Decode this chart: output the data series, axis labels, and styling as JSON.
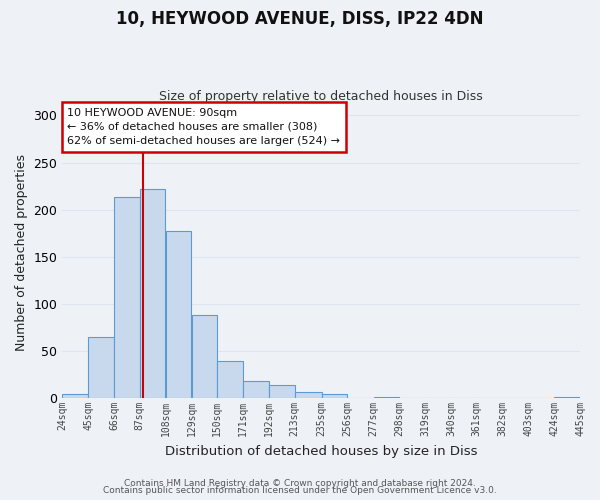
{
  "title": "10, HEYWOOD AVENUE, DISS, IP22 4DN",
  "subtitle": "Size of property relative to detached houses in Diss",
  "xlabel": "Distribution of detached houses by size in Diss",
  "ylabel": "Number of detached properties",
  "bar_edges": [
    24,
    45,
    66,
    87,
    108,
    129,
    150,
    171,
    192,
    213,
    235,
    256,
    277,
    298,
    319,
    340,
    361,
    382,
    403,
    424,
    445
  ],
  "bar_heights": [
    4,
    65,
    214,
    222,
    177,
    88,
    39,
    18,
    14,
    6,
    4,
    0,
    1,
    0,
    0,
    0,
    0,
    0,
    0,
    1
  ],
  "bar_color": "#c9d9ed",
  "bar_edge_color": "#5b9bd5",
  "vline_x": 90,
  "vline_color": "#cc0000",
  "ylim": [
    0,
    310
  ],
  "annotation_title": "10 HEYWOOD AVENUE: 90sqm",
  "annotation_line1": "← 36% of detached houses are smaller (308)",
  "annotation_line2": "62% of semi-detached houses are larger (524) →",
  "annotation_box_facecolor": "#ffffff",
  "annotation_box_edgecolor": "#cc0000",
  "footer1": "Contains HM Land Registry data © Crown copyright and database right 2024.",
  "footer2": "Contains public sector information licensed under the Open Government Licence v3.0.",
  "tick_labels": [
    "24sqm",
    "45sqm",
    "66sqm",
    "87sqm",
    "108sqm",
    "129sqm",
    "150sqm",
    "171sqm",
    "192sqm",
    "213sqm",
    "235sqm",
    "256sqm",
    "277sqm",
    "298sqm",
    "319sqm",
    "340sqm",
    "361sqm",
    "382sqm",
    "403sqm",
    "424sqm",
    "445sqm"
  ],
  "grid_color": "#dde6f0",
  "background_color": "#eef2f7",
  "plot_bg_color": "#eef2f7",
  "title_fontsize": 12,
  "subtitle_fontsize": 9
}
